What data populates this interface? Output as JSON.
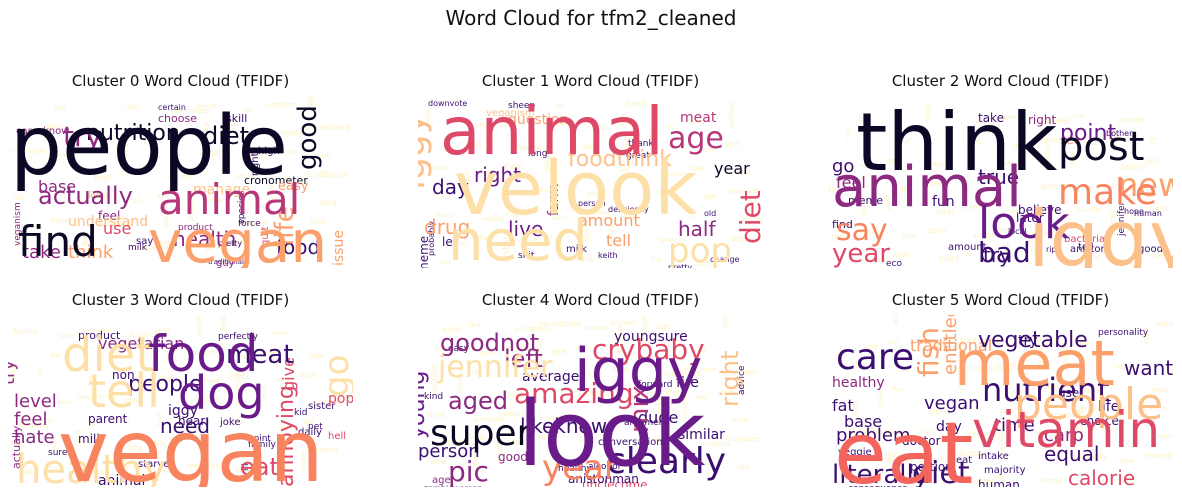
{
  "figure": {
    "title": "Word Cloud for tfm2_cleaned"
  },
  "palette": [
    "#0b0724",
    "#3b0f70",
    "#6a1b8a",
    "#8c2981",
    "#b73779",
    "#de4968",
    "#f3655c",
    "#f7845f",
    "#fba06b",
    "#fcc18a",
    "#fde0a8",
    "#fcf2c6"
  ],
  "panels": [
    {
      "title": "Cluster 0 Word Cloud (TFIDF)",
      "words": [
        {
          "t": "people",
          "w": 1.0,
          "c": 0
        },
        {
          "t": "vegan",
          "w": 0.72,
          "c": 8
        },
        {
          "t": "animal",
          "w": 0.5,
          "c": 4
        },
        {
          "t": "find",
          "w": 0.5,
          "c": 0
        },
        {
          "t": "try",
          "w": 0.34,
          "c": 3
        },
        {
          "t": "diet",
          "w": 0.3,
          "c": 0
        },
        {
          "t": "life",
          "w": 0.3,
          "c": 8
        },
        {
          "t": "good",
          "w": 0.28,
          "c": 0
        },
        {
          "t": "actually",
          "w": 0.3,
          "c": 3
        },
        {
          "t": "nutrition",
          "w": 0.26,
          "c": 0
        },
        {
          "t": "health",
          "w": 0.22,
          "c": 3
        },
        {
          "t": "food",
          "w": 0.2,
          "c": 1
        },
        {
          "t": "take",
          "w": 0.18,
          "c": 3
        },
        {
          "t": "think",
          "w": 0.18,
          "c": 8
        },
        {
          "t": "use",
          "w": 0.17,
          "c": 5
        },
        {
          "t": "base",
          "w": 0.15,
          "c": 3
        },
        {
          "t": "understand",
          "w": 0.15,
          "c": 9
        },
        {
          "t": "manage",
          "w": 0.15,
          "c": 9
        },
        {
          "t": "issue",
          "w": 0.15,
          "c": 8
        },
        {
          "t": "easy",
          "w": 0.13,
          "c": 8
        },
        {
          "t": "feel",
          "w": 0.12,
          "c": 3
        },
        {
          "t": "choose",
          "w": 0.11,
          "c": 3
        },
        {
          "t": "skill",
          "w": 0.11,
          "c": 1
        },
        {
          "t": "cronometer",
          "w": 0.1,
          "c": 0
        },
        {
          "t": "know",
          "w": 0.1,
          "c": 3
        },
        {
          "t": "care",
          "w": 0.1,
          "c": 3
        },
        {
          "t": "high",
          "w": 0.1,
          "c": 1
        },
        {
          "t": "right",
          "w": 0.1,
          "c": 1
        },
        {
          "t": "quit",
          "w": 0.1,
          "c": 5
        },
        {
          "t": "guy",
          "w": 0.09,
          "c": 3
        },
        {
          "t": "say",
          "w": 0.09,
          "c": 1
        },
        {
          "t": "veganism",
          "w": 0.08,
          "c": 3
        },
        {
          "t": "species",
          "w": 0.08,
          "c": 1
        },
        {
          "t": "force",
          "w": 0.08,
          "c": 1
        },
        {
          "t": "milk",
          "w": 0.07,
          "c": 1
        },
        {
          "t": "product",
          "w": 0.07,
          "c": 3
        },
        {
          "t": "live",
          "w": 0.08,
          "c": 8
        },
        {
          "t": "certain",
          "w": 0.07,
          "c": 1
        },
        {
          "t": "pretty",
          "w": 0.07,
          "c": 1
        },
        {
          "t": "traditional",
          "w": 0.06,
          "c": 1
        }
      ]
    },
    {
      "title": "Cluster 1 Word Cloud (TFIDF)",
      "words": [
        {
          "t": "animal",
          "w": 0.85,
          "c": 5
        },
        {
          "t": "velook",
          "w": 0.95,
          "c": 10
        },
        {
          "t": "need",
          "w": 0.75,
          "c": 10
        },
        {
          "t": "iggy",
          "w": 0.45,
          "c": 9
        },
        {
          "t": "pop",
          "w": 0.42,
          "c": 10
        },
        {
          "t": "age",
          "w": 0.38,
          "c": 4
        },
        {
          "t": "foodthink",
          "w": 0.3,
          "c": 9
        },
        {
          "t": "diet",
          "w": 0.32,
          "c": 5
        },
        {
          "t": "right",
          "w": 0.26,
          "c": 2
        },
        {
          "t": "live",
          "w": 0.26,
          "c": 2
        },
        {
          "t": "drug",
          "w": 0.22,
          "c": 8
        },
        {
          "t": "day",
          "w": 0.22,
          "c": 1
        },
        {
          "t": "year",
          "w": 0.22,
          "c": 0
        },
        {
          "t": "half",
          "w": 0.22,
          "c": 3
        },
        {
          "t": "amount",
          "w": 0.18,
          "c": 8
        },
        {
          "t": "tell",
          "w": 0.18,
          "c": 8
        },
        {
          "t": "farm",
          "w": 0.15,
          "c": 3
        },
        {
          "t": "meat",
          "w": 0.15,
          "c": 4
        },
        {
          "t": "question",
          "w": 0.14,
          "c": 8
        },
        {
          "t": "veganism",
          "w": 0.12,
          "c": 9
        },
        {
          "t": "let",
          "w": 0.12,
          "c": 1
        },
        {
          "t": "meme",
          "w": 0.11,
          "c": 1
        },
        {
          "t": "milk",
          "w": 0.1,
          "c": 1
        },
        {
          "t": "shit",
          "w": 0.09,
          "c": 1
        },
        {
          "t": "keith",
          "w": 0.08,
          "c": 1
        },
        {
          "t": "pretty",
          "w": 0.08,
          "c": 1
        },
        {
          "t": "change",
          "w": 0.08,
          "c": 1
        },
        {
          "t": "thank",
          "w": 0.08,
          "c": 1
        },
        {
          "t": "great",
          "w": 0.08,
          "c": 1
        },
        {
          "t": "long",
          "w": 0.08,
          "c": 1
        },
        {
          "t": "sheep",
          "w": 0.08,
          "c": 1
        },
        {
          "t": "downvote",
          "w": 0.07,
          "c": 1
        },
        {
          "t": "person",
          "w": 0.07,
          "c": 1
        },
        {
          "t": "deficiency",
          "w": 0.07,
          "c": 1
        },
        {
          "t": "old",
          "w": 0.07,
          "c": 1
        },
        {
          "t": "probably",
          "w": 0.06,
          "c": 1
        }
      ]
    },
    {
      "title": "Cluster 2 Word Cloud (TFIDF)",
      "words": [
        {
          "t": "think",
          "w": 1.0,
          "c": 0
        },
        {
          "t": "animal",
          "w": 0.6,
          "c": 3
        },
        {
          "t": "iggy",
          "w": 0.75,
          "c": 9
        },
        {
          "t": "look",
          "w": 0.6,
          "c": 2
        },
        {
          "t": "post",
          "w": 0.45,
          "c": 0
        },
        {
          "t": "make",
          "w": 0.45,
          "c": 7
        },
        {
          "t": "new",
          "w": 0.38,
          "c": 8
        },
        {
          "t": "say",
          "w": 0.36,
          "c": 7
        },
        {
          "t": "bad",
          "w": 0.32,
          "c": 1
        },
        {
          "t": "year",
          "w": 0.32,
          "c": 5
        },
        {
          "t": "try",
          "w": 0.25,
          "c": 1
        },
        {
          "t": "point",
          "w": 0.26,
          "c": 2
        },
        {
          "t": "true",
          "w": 0.22,
          "c": 1
        },
        {
          "t": "go",
          "w": 0.2,
          "c": 1
        },
        {
          "t": "feel",
          "w": 0.18,
          "c": 3
        },
        {
          "t": "fun",
          "w": 0.16,
          "c": 1
        },
        {
          "t": "take",
          "w": 0.14,
          "c": 1
        },
        {
          "t": "right",
          "w": 0.14,
          "c": 3
        },
        {
          "t": "see",
          "w": 0.16,
          "c": 8
        },
        {
          "t": "believe",
          "w": 0.14,
          "c": 1
        },
        {
          "t": "later",
          "w": 0.13,
          "c": 1
        },
        {
          "t": "meme",
          "w": 0.12,
          "c": 1
        },
        {
          "t": "find",
          "w": 0.12,
          "c": 1
        },
        {
          "t": "amount",
          "w": 0.11,
          "c": 1
        },
        {
          "t": "bacteria",
          "w": 0.11,
          "c": 5
        },
        {
          "t": "good",
          "w": 0.1,
          "c": 1
        },
        {
          "t": "tell",
          "w": 0.1,
          "c": 1
        },
        {
          "t": "aniston",
          "w": 0.1,
          "c": 1
        },
        {
          "t": "jennifer",
          "w": 0.09,
          "c": 1
        },
        {
          "t": "eco",
          "w": 0.08,
          "c": 1
        },
        {
          "t": "friendly",
          "w": 0.07,
          "c": 1
        },
        {
          "t": "local",
          "w": 0.07,
          "c": 1
        },
        {
          "t": "human",
          "w": 0.07,
          "c": 1
        },
        {
          "t": "bother",
          "w": 0.07,
          "c": 1
        },
        {
          "t": "hope",
          "w": 0.07,
          "c": 1
        },
        {
          "t": "rip",
          "w": 0.07,
          "c": 1
        }
      ]
    },
    {
      "title": "Cluster 3 Word Cloud (TFIDF)",
      "words": [
        {
          "t": "vegan",
          "w": 1.0,
          "c": 7
        },
        {
          "t": "food",
          "w": 0.55,
          "c": 2
        },
        {
          "t": "dog",
          "w": 0.5,
          "c": 2
        },
        {
          "t": "diet",
          "w": 0.45,
          "c": 10
        },
        {
          "t": "tell",
          "w": 0.45,
          "c": 10
        },
        {
          "t": "healthy",
          "w": 0.38,
          "c": 10
        },
        {
          "t": "meat",
          "w": 0.28,
          "c": 1
        },
        {
          "t": "people",
          "w": 0.24,
          "c": 1
        },
        {
          "t": "annoying",
          "w": 0.24,
          "c": 5
        },
        {
          "t": "eat",
          "w": 0.28,
          "c": 5
        },
        {
          "t": "go",
          "w": 0.3,
          "c": 10
        },
        {
          "t": "feel",
          "w": 0.22,
          "c": 3
        },
        {
          "t": "level",
          "w": 0.2,
          "c": 3
        },
        {
          "t": "hate",
          "w": 0.2,
          "c": 3
        },
        {
          "t": "try",
          "w": 0.2,
          "c": 3
        },
        {
          "t": "need",
          "w": 0.2,
          "c": 1
        },
        {
          "t": "vegetarian",
          "w": 0.15,
          "c": 3
        },
        {
          "t": "give",
          "w": 0.14,
          "c": 5
        },
        {
          "t": "pop",
          "w": 0.12,
          "c": 5
        },
        {
          "t": "iggy",
          "w": 0.13,
          "c": 1
        },
        {
          "t": "milk",
          "w": 0.11,
          "c": 1
        },
        {
          "t": "animal",
          "w": 0.12,
          "c": 1
        },
        {
          "t": "parent",
          "w": 0.11,
          "c": 1
        },
        {
          "t": "non",
          "w": 0.11,
          "c": 1
        },
        {
          "t": "hear",
          "w": 0.11,
          "c": 1
        },
        {
          "t": "actually",
          "w": 0.11,
          "c": 3
        },
        {
          "t": "product",
          "w": 0.1,
          "c": 1
        },
        {
          "t": "starve",
          "w": 0.1,
          "c": 1
        },
        {
          "t": "sister",
          "w": 0.09,
          "c": 1
        },
        {
          "t": "joke",
          "w": 0.09,
          "c": 1
        },
        {
          "t": "daily",
          "w": 0.09,
          "c": 1
        },
        {
          "t": "hell",
          "w": 0.09,
          "c": 5
        },
        {
          "t": "pet",
          "w": 0.08,
          "c": 1
        },
        {
          "t": "kid",
          "w": 0.08,
          "c": 1
        },
        {
          "t": "ill",
          "w": 0.08,
          "c": 1
        },
        {
          "t": "family",
          "w": 0.08,
          "c": 1
        },
        {
          "t": "point",
          "w": 0.07,
          "c": 1
        },
        {
          "t": "perfectly",
          "w": 0.07,
          "c": 1
        },
        {
          "t": "sure",
          "w": 0.07,
          "c": 1
        }
      ]
    },
    {
      "title": "Cluster 4 Word Cloud (TFIDF)",
      "words": [
        {
          "t": "look",
          "w": 1.0,
          "c": 2
        },
        {
          "t": "iggy",
          "w": 0.6,
          "c": 2
        },
        {
          "t": "super",
          "w": 0.42,
          "c": 0
        },
        {
          "t": "clearly",
          "w": 0.45,
          "c": 1
        },
        {
          "t": "year",
          "w": 0.45,
          "c": 7
        },
        {
          "t": "jennifer",
          "w": 0.35,
          "c": 10
        },
        {
          "t": "crybaby",
          "w": 0.35,
          "c": 5
        },
        {
          "t": "amazing",
          "w": 0.34,
          "c": 5
        },
        {
          "t": "aged",
          "w": 0.3,
          "c": 3
        },
        {
          "t": "pic",
          "w": 0.32,
          "c": 3
        },
        {
          "t": "mix",
          "w": 0.25,
          "c": 4
        },
        {
          "t": "left",
          "w": 0.24,
          "c": 3
        },
        {
          "t": "goodnot",
          "w": 0.24,
          "c": 3
        },
        {
          "t": "likeknow",
          "w": 0.2,
          "c": 1
        },
        {
          "t": "young",
          "w": 0.2,
          "c": 2
        },
        {
          "t": "right",
          "w": 0.2,
          "c": 9
        },
        {
          "t": "person",
          "w": 0.18,
          "c": 1
        },
        {
          "t": "dude",
          "w": 0.14,
          "c": 1
        },
        {
          "t": "average",
          "w": 0.12,
          "c": 1
        },
        {
          "t": "youngsure",
          "w": 0.11,
          "c": 1
        },
        {
          "t": "fire",
          "w": 0.11,
          "c": 1
        },
        {
          "t": "similar",
          "w": 0.1,
          "c": 1
        },
        {
          "t": "good",
          "w": 0.1,
          "c": 3
        },
        {
          "t": "anistonman",
          "w": 0.12,
          "c": 1
        },
        {
          "t": "unclecome",
          "w": 0.11,
          "c": 5
        },
        {
          "t": "conversation",
          "w": 0.09,
          "c": 1
        },
        {
          "t": "age",
          "w": 0.09,
          "c": 3
        },
        {
          "t": "zombiewoman",
          "w": 0.07,
          "c": 1
        },
        {
          "t": "alcohol",
          "w": 0.07,
          "c": 1
        },
        {
          "t": "healthy",
          "w": 0.07,
          "c": 1
        },
        {
          "t": "argument",
          "w": 0.07,
          "c": 1
        },
        {
          "t": "advice",
          "w": 0.06,
          "c": 1
        },
        {
          "t": "easy",
          "w": 0.06,
          "c": 1
        },
        {
          "t": "kind",
          "w": 0.06,
          "c": 1
        },
        {
          "t": "forward",
          "w": 0.06,
          "c": 1
        }
      ]
    },
    {
      "title": "Cluster 5 Word Cloud (TFIDF)",
      "words": [
        {
          "t": "eat",
          "w": 1.0,
          "c": 6
        },
        {
          "t": "meat",
          "w": 0.65,
          "c": 8
        },
        {
          "t": "vitamin",
          "w": 0.5,
          "c": 5
        },
        {
          "t": "people",
          "w": 0.45,
          "c": 9
        },
        {
          "t": "care",
          "w": 0.36,
          "c": 1
        },
        {
          "t": "nutrient",
          "w": 0.32,
          "c": 1
        },
        {
          "t": "diet",
          "w": 0.3,
          "c": 1
        },
        {
          "t": "literally",
          "w": 0.24,
          "c": 1
        },
        {
          "t": "fish",
          "w": 0.22,
          "c": 8
        },
        {
          "t": "vegetable",
          "w": 0.16,
          "c": 1
        },
        {
          "t": "want",
          "w": 0.16,
          "c": 1
        },
        {
          "t": "healthy",
          "w": 0.14,
          "c": 3
        },
        {
          "t": "time",
          "w": 0.16,
          "c": 1
        },
        {
          "t": "problem",
          "w": 0.14,
          "c": 1
        },
        {
          "t": "equal",
          "w": 0.14,
          "c": 1
        },
        {
          "t": "calorie",
          "w": 0.14,
          "c": 5
        },
        {
          "t": "vegan",
          "w": 0.12,
          "c": 1
        },
        {
          "t": "fat",
          "w": 0.12,
          "c": 1
        },
        {
          "t": "carp",
          "w": 0.12,
          "c": 3
        },
        {
          "t": "entitled",
          "w": 0.12,
          "c": 8
        },
        {
          "t": "traditional",
          "w": 0.12,
          "c": 8
        },
        {
          "t": "try",
          "w": 0.11,
          "c": 1
        },
        {
          "t": "base",
          "w": 0.11,
          "c": 1
        },
        {
          "t": "life",
          "w": 0.1,
          "c": 1
        },
        {
          "t": "day",
          "w": 0.1,
          "c": 1
        },
        {
          "t": "human",
          "w": 0.09,
          "c": 1
        },
        {
          "t": "use",
          "w": 0.09,
          "c": 1
        },
        {
          "t": "choice",
          "w": 0.09,
          "c": 1
        },
        {
          "t": "portion",
          "w": 0.08,
          "c": 1
        },
        {
          "t": "doctor",
          "w": 0.08,
          "c": 1
        },
        {
          "t": "veggie",
          "w": 0.07,
          "c": 1
        },
        {
          "t": "intake",
          "w": 0.07,
          "c": 1
        },
        {
          "t": "majority",
          "w": 0.07,
          "c": 1
        },
        {
          "t": "eat",
          "w": 0.08,
          "c": 1
        },
        {
          "t": "personality",
          "w": 0.06,
          "c": 1
        },
        {
          "t": "consequence",
          "w": 0.06,
          "c": 1
        }
      ]
    }
  ]
}
